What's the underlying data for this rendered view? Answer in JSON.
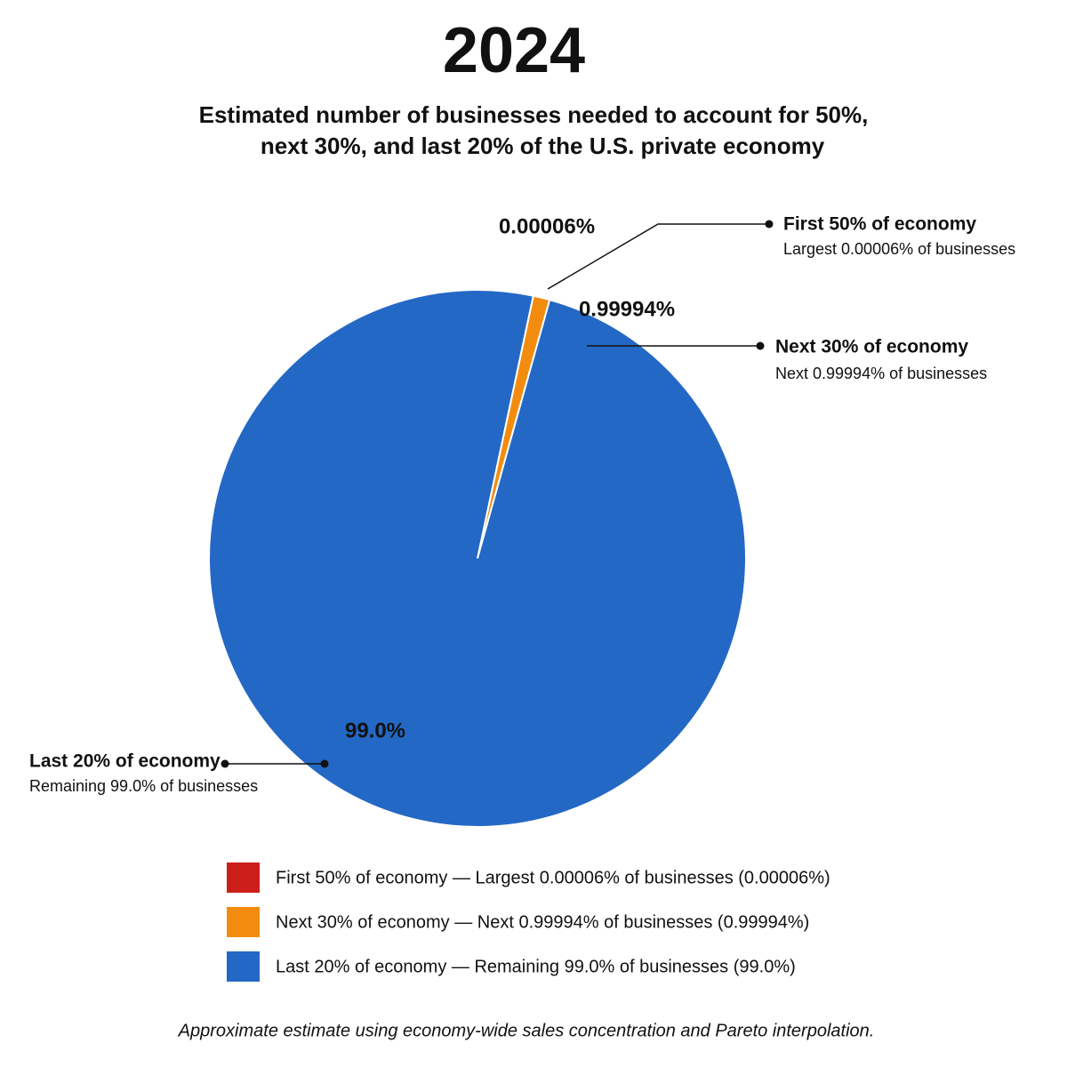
{
  "chart_data": {
    "type": "pie",
    "title": "2024",
    "subtitle": [
      "Estimated number of businesses needed to account for 50%,",
      "next 30%, and last 20% of the U.S. private economy"
    ],
    "categories": [
      "First 50% of economy",
      "Next 30% of economy",
      "Last 20% of economy"
    ],
    "category_details": [
      "Largest 0.00006% of businesses",
      "Next 0.99994% of businesses",
      "Remaining 99.0% of businesses"
    ],
    "values": [
      6e-05,
      0.99994,
      99.0
    ],
    "value_labels": [
      "0.00006%",
      "0.99994%",
      "99.0%"
    ],
    "colors": [
      "#cc1f1a",
      "#f28c0f",
      "#2468c5"
    ],
    "legend_labels": [
      "First 50% of economy — Largest 0.00006% of businesses (0.00006%)",
      "Next 30% of economy — Next 0.99994% of businesses (0.99994%)",
      "Last 20% of economy — Remaining 99.0% of businesses (99.0%)"
    ],
    "note": "Approximate estimate using economy-wide sales concentration and Pareto interpolation."
  }
}
